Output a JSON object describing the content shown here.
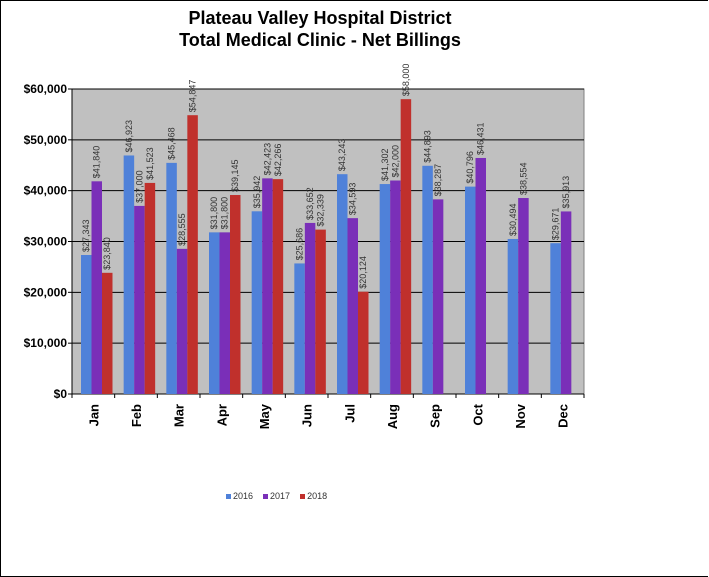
{
  "chart_data": {
    "type": "bar",
    "title_line1": "Plateau Valley Hospital District",
    "title_line2": "Total Medical Clinic - Net Billings",
    "categories": [
      "Jan",
      "Feb",
      "Mar",
      "Apr",
      "May",
      "Jun",
      "Jul",
      "Aug",
      "Sep",
      "Oct",
      "Nov",
      "Dec"
    ],
    "series": [
      {
        "name": "2016",
        "color": "#4f81d9",
        "values": [
          27343,
          46923,
          45468,
          31800,
          35942,
          25686,
          43243,
          41302,
          44893,
          40796,
          30494,
          29671
        ],
        "labels": [
          "$27,343",
          "$46,923",
          "$45,468",
          "$31,800",
          "$35,942",
          "$25,686",
          "$43,243",
          "$41,302",
          "$44,893",
          "$40,796",
          "$30,494",
          "$29,671"
        ]
      },
      {
        "name": "2017",
        "color": "#7a2fb8",
        "values": [
          41840,
          37000,
          28555,
          31800,
          42423,
          33652,
          34593,
          42000,
          38287,
          46431,
          38554,
          35913
        ],
        "labels": [
          "$41,840",
          "$37,000",
          "$28,555",
          "$31,800",
          "$42,423",
          "$33,652",
          "$34,593",
          "$42,000",
          "$38,287",
          "$46,431",
          "$38,554",
          "$35,913"
        ]
      },
      {
        "name": "2018",
        "color": "#c0302c",
        "values": [
          23840,
          41523,
          54847,
          39145,
          42266,
          32339,
          20124,
          58000,
          null,
          null,
          null,
          null
        ],
        "labels": [
          "$23,840",
          "$41,523",
          "$54,847",
          "$39,145",
          "$42,266",
          "$32,339",
          "$20,124",
          "$58,000",
          "",
          "",
          "",
          ""
        ]
      }
    ],
    "ylim": [
      0,
      60000
    ],
    "yticks": [
      0,
      10000,
      20000,
      30000,
      40000,
      50000,
      60000
    ],
    "ytick_labels": [
      "$0",
      "$10,000",
      "$20,000",
      "$30,000",
      "$40,000",
      "$50,000",
      "$60,000"
    ],
    "legend_position": "bottom",
    "grid": true,
    "plot_background": "#c0c0c0"
  }
}
